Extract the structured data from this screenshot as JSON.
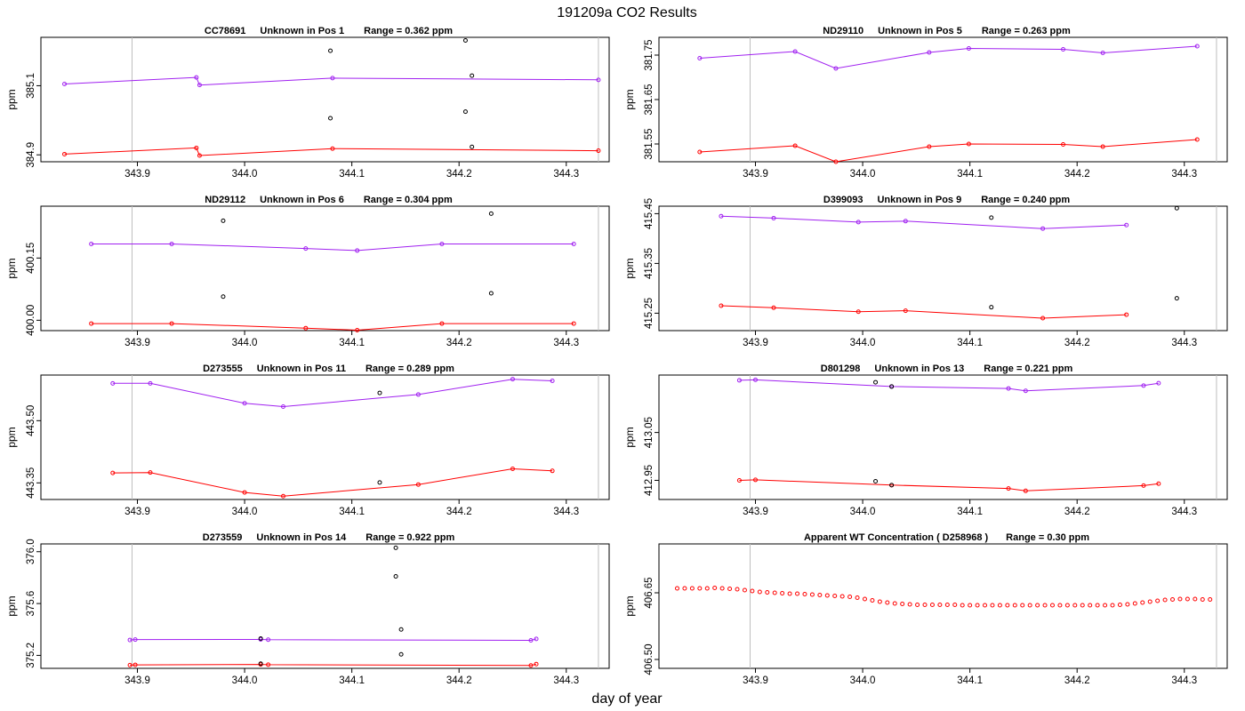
{
  "figure": {
    "title": "191209a  CO2 Results",
    "xlabel": "day of year",
    "ylabel": "ppm"
  },
  "colors": {
    "upper": "#a020f0",
    "lower": "#ff0000",
    "dark": "#000000",
    "frame": "#000000",
    "vline": "#bebebe"
  },
  "chart_data": [
    {
      "type": "line",
      "title": {
        "id": "CC78691",
        "pos": "Unknown in Pos 1",
        "range": "Range =  0.362 ppm"
      },
      "xlim": [
        343.81,
        344.34
      ],
      "ylim": [
        384.88,
        385.24
      ],
      "xticks": [
        "343.9",
        "344.0",
        "344.1",
        "344.2",
        "344.3"
      ],
      "yticks": [
        "384.9",
        "385.1"
      ],
      "vlines": [
        343.895,
        344.33
      ],
      "upper": {
        "x": [
          343.832,
          343.955,
          343.958,
          344.082,
          344.33
        ],
        "y": [
          385.105,
          385.124,
          385.102,
          385.122,
          385.117
        ]
      },
      "lower": {
        "x": [
          343.832,
          343.955,
          343.958,
          344.082,
          344.33
        ],
        "y": [
          384.902,
          384.92,
          384.898,
          384.918,
          384.912
        ]
      },
      "dark_upper": {
        "x": [
          344.08,
          344.206,
          344.212
        ],
        "y": [
          385.201,
          385.231,
          385.129
        ]
      },
      "dark_lower": {
        "x": [
          344.08,
          344.206,
          344.212
        ],
        "y": [
          385.006,
          385.025,
          384.923
        ]
      }
    },
    {
      "type": "line",
      "title": {
        "id": "ND29110",
        "pos": "Unknown in Pos 5",
        "range": "Range =  0.263 ppm"
      },
      "xlim": [
        343.81,
        344.34
      ],
      "ylim": [
        381.51,
        381.79
      ],
      "xticks": [
        "343.9",
        "344.0",
        "344.1",
        "344.2",
        "344.3"
      ],
      "yticks": [
        "381.55",
        "381.65",
        "381.75"
      ],
      "vlines": [
        343.895,
        344.33
      ],
      "upper": {
        "x": [
          343.848,
          343.937,
          343.975,
          344.062,
          344.099,
          344.187,
          344.224,
          344.312
        ],
        "y": [
          381.743,
          381.758,
          381.72,
          381.756,
          381.765,
          381.763,
          381.755,
          381.77
        ]
      },
      "lower": {
        "x": [
          343.848,
          343.937,
          343.975,
          344.062,
          344.099,
          344.187,
          344.224,
          344.312
        ],
        "y": [
          381.532,
          381.546,
          381.51,
          381.544,
          381.55,
          381.549,
          381.544,
          381.56
        ]
      },
      "dark_upper": {
        "x": [],
        "y": []
      },
      "dark_lower": {
        "x": [],
        "y": []
      }
    },
    {
      "type": "line",
      "title": {
        "id": "ND29112",
        "pos": "Unknown in Pos 6",
        "range": "Range =  0.304 ppm"
      },
      "xlim": [
        343.81,
        344.34
      ],
      "ylim": [
        399.975,
        400.275
      ],
      "xticks": [
        "343.9",
        "344.0",
        "344.1",
        "344.2",
        "344.3"
      ],
      "yticks": [
        "400.00",
        "400.15"
      ],
      "vlines": [
        343.895,
        344.33
      ],
      "upper": {
        "x": [
          343.857,
          343.932,
          344.057,
          344.105,
          344.184,
          344.307
        ],
        "y": [
          400.184,
          400.184,
          400.173,
          400.168,
          400.184,
          400.184
        ]
      },
      "lower": {
        "x": [
          343.857,
          343.932,
          344.057,
          344.105,
          344.184,
          344.307
        ],
        "y": [
          399.992,
          399.992,
          399.981,
          399.976,
          399.992,
          399.992
        ]
      },
      "dark_upper": {
        "x": [
          343.98,
          344.23
        ],
        "y": [
          400.24,
          400.257
        ]
      },
      "dark_lower": {
        "x": [
          343.98,
          344.23
        ],
        "y": [
          400.057,
          400.065
        ]
      }
    },
    {
      "type": "line",
      "title": {
        "id": "D399093",
        "pos": "Unknown in Pos 9",
        "range": "Range =  0.240 ppm"
      },
      "xlim": [
        343.81,
        344.34
      ],
      "ylim": [
        415.215,
        415.465
      ],
      "xticks": [
        "343.9",
        "344.0",
        "344.1",
        "344.2",
        "344.3"
      ],
      "yticks": [
        "415.25",
        "415.35",
        "415.45"
      ],
      "vlines": [
        343.895,
        344.33
      ],
      "upper": {
        "x": [
          343.868,
          343.917,
          343.996,
          344.04,
          344.168,
          344.246
        ],
        "y": [
          415.445,
          415.441,
          415.433,
          415.435,
          415.42,
          415.427
        ]
      },
      "lower": {
        "x": [
          343.868,
          343.917,
          343.996,
          344.04,
          344.168,
          344.246
        ],
        "y": [
          415.265,
          415.261,
          415.253,
          415.255,
          415.24,
          415.247
        ]
      },
      "dark_upper": {
        "x": [
          344.12,
          344.293
        ],
        "y": [
          415.442,
          415.461
        ]
      },
      "dark_lower": {
        "x": [
          344.12,
          344.293
        ],
        "y": [
          415.262,
          415.28
        ]
      }
    },
    {
      "type": "line",
      "title": {
        "id": "D273555",
        "pos": "Unknown in Pos 11",
        "range": "Range =  0.289 ppm"
      },
      "xlim": [
        343.81,
        344.34
      ],
      "ylim": [
        443.31,
        443.61
      ],
      "xticks": [
        "343.9",
        "344.0",
        "344.1",
        "344.2",
        "344.3"
      ],
      "yticks": [
        "443.35",
        "443.50"
      ],
      "vlines": [
        343.895,
        344.33
      ],
      "upper": {
        "x": [
          343.877,
          343.912,
          344.0,
          344.036,
          344.162,
          344.25,
          344.287
        ],
        "y": [
          443.59,
          443.59,
          443.542,
          443.534,
          443.563,
          443.6,
          443.596
        ]
      },
      "lower": {
        "x": [
          343.877,
          343.912,
          344.0,
          344.036,
          344.162,
          344.25,
          344.287
        ],
        "y": [
          443.374,
          443.375,
          443.327,
          443.318,
          443.346,
          443.384,
          443.379
        ]
      },
      "dark_upper": {
        "x": [
          344.126
        ],
        "y": [
          443.567
        ]
      },
      "dark_lower": {
        "x": [
          344.126
        ],
        "y": [
          443.351
        ]
      }
    },
    {
      "type": "line",
      "title": {
        "id": "D801298",
        "pos": "Unknown in Pos 13",
        "range": "Range =  0.221 ppm"
      },
      "xlim": [
        343.81,
        344.34
      ],
      "ylim": [
        412.91,
        413.17
      ],
      "xticks": [
        "343.9",
        "344.0",
        "344.1",
        "344.2",
        "344.3"
      ],
      "yticks": [
        "412.95",
        "413.05"
      ],
      "vlines": [
        343.895,
        344.33
      ],
      "upper": {
        "x": [
          343.885,
          343.9,
          344.027,
          344.136,
          344.152,
          344.262,
          344.276
        ],
        "y": [
          413.159,
          413.16,
          413.146,
          413.142,
          413.137,
          413.148,
          413.153
        ]
      },
      "lower": {
        "x": [
          343.885,
          343.9,
          344.027,
          344.136,
          344.152,
          344.262,
          344.276
        ],
        "y": [
          412.95,
          412.951,
          412.94,
          412.933,
          412.928,
          412.939,
          412.943
        ]
      },
      "dark_upper": {
        "x": [
          344.012,
          344.027
        ],
        "y": [
          413.155,
          413.146
        ]
      },
      "dark_lower": {
        "x": [
          344.012,
          344.027
        ],
        "y": [
          412.948,
          412.94
        ]
      }
    },
    {
      "type": "line",
      "title": {
        "id": "D273559",
        "pos": "Unknown in Pos 14",
        "range": "Range =  0.922 ppm"
      },
      "xlim": [
        343.81,
        344.34
      ],
      "ylim": [
        375.1,
        376.06
      ],
      "xticks": [
        "343.9",
        "344.0",
        "344.1",
        "344.2",
        "344.3"
      ],
      "yticks": [
        "375.2",
        "375.6",
        "376.0"
      ],
      "vlines": [
        343.895,
        344.33
      ],
      "upper": {
        "x": [
          343.893,
          343.898,
          344.015,
          344.022,
          344.267,
          344.272
        ],
        "y": [
          375.319,
          375.322,
          375.323,
          375.321,
          375.316,
          375.327
        ]
      },
      "lower": {
        "x": [
          343.893,
          343.898,
          344.015,
          344.022,
          344.267,
          344.272
        ],
        "y": [
          375.125,
          375.127,
          375.13,
          375.128,
          375.122,
          375.133
        ]
      },
      "dark_upper": {
        "x": [
          344.015,
          344.141,
          344.146
        ],
        "y": [
          375.33,
          376.03,
          375.4
        ]
      },
      "dark_lower": {
        "x": [
          344.015,
          344.141,
          344.146
        ],
        "y": [
          375.136,
          375.81,
          375.208
        ]
      }
    },
    {
      "type": "scatter",
      "title": {
        "label": "Apparent WT Concentration ( D258968 )",
        "range": "Range = 0.30 ppm"
      },
      "xlim": [
        343.81,
        344.34
      ],
      "ylim": [
        406.48,
        406.76
      ],
      "xticks": [
        "343.9",
        "344.0",
        "344.1",
        "344.2",
        "344.3"
      ],
      "yticks": [
        "406.50",
        "406.65"
      ],
      "vlines": [
        343.895,
        344.33
      ],
      "wt": {
        "x": [
          343.827,
          343.834,
          343.841,
          343.848,
          343.855,
          343.862,
          343.869,
          343.876,
          343.883,
          343.89,
          343.897,
          343.904,
          343.911,
          343.918,
          343.925,
          343.932,
          343.939,
          343.946,
          343.953,
          343.96,
          343.967,
          343.974,
          343.981,
          343.988,
          343.995,
          344.002,
          344.009,
          344.016,
          344.023,
          344.03,
          344.037,
          344.044,
          344.051,
          344.058,
          344.065,
          344.072,
          344.079,
          344.086,
          344.093,
          344.1,
          344.107,
          344.114,
          344.121,
          344.128,
          344.135,
          344.142,
          344.149,
          344.156,
          344.163,
          344.17,
          344.177,
          344.184,
          344.191,
          344.198,
          344.205,
          344.212,
          344.219,
          344.226,
          344.233,
          344.24,
          344.247,
          344.254,
          344.261,
          344.268,
          344.275,
          344.282,
          344.289,
          344.296,
          344.303,
          344.31,
          344.317,
          344.324
        ],
        "y": [
          406.66,
          406.66,
          406.66,
          406.66,
          406.66,
          406.661,
          406.66,
          406.659,
          406.658,
          406.656,
          406.654,
          406.652,
          406.651,
          406.65,
          406.649,
          406.648,
          406.648,
          406.647,
          406.646,
          406.645,
          406.644,
          406.643,
          406.642,
          406.641,
          406.639,
          406.636,
          406.633,
          406.63,
          406.628,
          406.626,
          406.625,
          406.624,
          406.623,
          406.623,
          406.623,
          406.623,
          406.623,
          406.623,
          406.622,
          406.622,
          406.622,
          406.622,
          406.622,
          406.622,
          406.622,
          406.622,
          406.622,
          406.622,
          406.622,
          406.622,
          406.622,
          406.622,
          406.622,
          406.622,
          406.622,
          406.622,
          406.622,
          406.622,
          406.622,
          406.623,
          406.624,
          406.626,
          406.628,
          406.63,
          406.632,
          406.634,
          406.635,
          406.636,
          406.636,
          406.636,
          406.635,
          406.635
        ]
      }
    }
  ]
}
